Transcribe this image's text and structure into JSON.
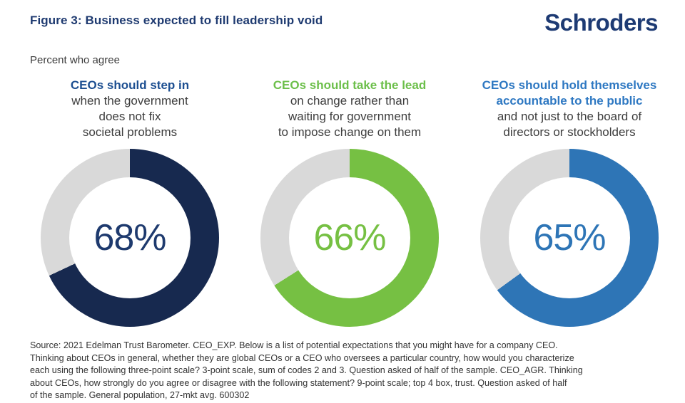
{
  "header": {
    "title": "Figure 3: Business expected to fill leadership void",
    "logo": "Schroders"
  },
  "subtitle": "Percent who agree",
  "colors": {
    "title_navy": "#1e3a70",
    "logo_navy": "#1d3a73",
    "body_text_gray": "#3d3d3d",
    "footer_gray": "#333333",
    "donut_remainder_gray": "#d9d9d9"
  },
  "chart_data": {
    "type": "pie",
    "subtype": "donut",
    "title": "Figure 3: Business expected to fill leadership void",
    "subtitle": "Percent who agree",
    "start_angle_deg": 0,
    "direction": "clockwise",
    "remainder_color": "#d9d9d9",
    "charts": [
      {
        "heading_bold_lines": [
          "CEOs should step in"
        ],
        "heading_rest_lines": [
          "when the government",
          "does not fix",
          "societal problems"
        ],
        "heading_color": "#1d4f91",
        "value": 68,
        "label": "68%",
        "ring_color": "#17294f",
        "value_color": "#1e3a6e"
      },
      {
        "heading_bold_lines": [
          "CEOs should take the lead"
        ],
        "heading_rest_lines": [
          "on change rather than",
          "waiting for government",
          "to impose change on them"
        ],
        "heading_color": "#6cbf4a",
        "value": 66,
        "label": "66%",
        "ring_color": "#76c043",
        "value_color": "#76c043"
      },
      {
        "heading_bold_lines": [
          "CEOs should hold themselves",
          "accountable to the public"
        ],
        "heading_rest_lines": [
          "and not just to the board of",
          "directors or stockholders"
        ],
        "heading_color": "#2e78c2",
        "value": 65,
        "label": "65%",
        "ring_color": "#2e75b6",
        "value_color": "#2e75b6"
      }
    ]
  },
  "footer": {
    "lines": [
      "Source: 2021 Edelman Trust Barometer. CEO_EXP. Below is a list of potential expectations that you might have for a company CEO.",
      "Thinking about CEOs in general, whether they are global CEOs or a CEO who oversees a particular country, how would you characterize",
      "each using the following three-point scale? 3-point scale, sum of codes 2 and 3. Question asked of half of the sample. CEO_AGR. Thinking",
      "about CEOs, how strongly do you agree or disagree with the following statement? 9-point scale; top 4 box, trust. Question asked of half",
      "of the sample. General population, 27-mkt avg. 600302"
    ]
  }
}
